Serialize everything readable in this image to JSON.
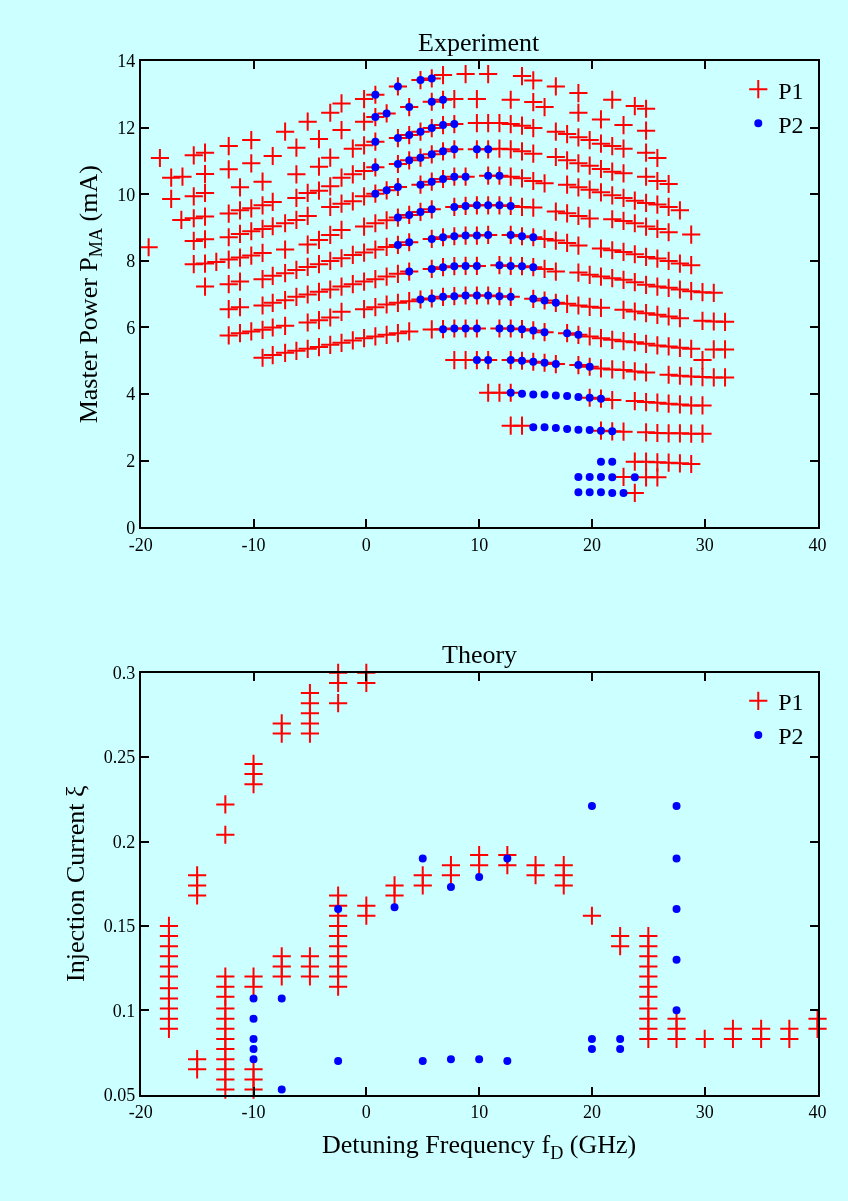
{
  "chart_data": [
    {
      "type": "scatter",
      "title": "Experiment",
      "ylabel": "Master Power P$_{MA}$ (mA)",
      "xlim": [
        -20,
        40
      ],
      "ylim": [
        0,
        14
      ],
      "xticks": [
        -20,
        -10,
        0,
        10,
        20,
        30,
        40
      ],
      "yticks": [
        0,
        2,
        4,
        6,
        8,
        10,
        12,
        14
      ],
      "grid": false,
      "legend": "top right",
      "series": [
        {
          "name": "P1",
          "color": "#ff0000",
          "marker": "cross",
          "x": [
            -19.3,
            -18.3,
            -17.3,
            -16.3,
            -17.3,
            -15.3,
            -14.3,
            -14.3,
            -15.3,
            -14.3,
            -16.4,
            -15.3,
            -14.3,
            -15.3,
            -14.3,
            -14.3,
            -15.3,
            -14.3,
            -13.3,
            -12.2,
            -11.2,
            -10.2,
            -9.2,
            -12.2,
            -10.2,
            -12.2,
            -10.2,
            -11.2,
            -9.2,
            -12.2,
            -11.2,
            -10.2,
            -9.2,
            -8.3,
            -12.2,
            -11.2,
            -10.2,
            -9.2,
            -8.3,
            -7.2,
            -6.2,
            -5.2,
            -12.2,
            -11.2,
            -9.2,
            -8.3,
            -7.2,
            -6.2,
            -5.2,
            -4.2,
            -3.2,
            -2.2,
            -1.2,
            -0.2,
            0.8,
            1.8,
            2.8,
            3.8,
            5.8,
            -12.2,
            -11.2,
            -9.2,
            -8.3,
            -7.2,
            -6.2,
            -5.2,
            -4.2,
            -3.2,
            -2.2,
            -1.2,
            -0.2,
            0.8,
            1.8,
            2.8,
            3.8,
            5.8,
            -12.2,
            -11.2,
            -10.2,
            -9.2,
            -8.3,
            -7.2,
            -5.2,
            -4.2,
            -3.2,
            -2.2,
            -0.2,
            0.8,
            1.8,
            2.8,
            3.8,
            4.8,
            5.8,
            -9.2,
            -8.3,
            -7.2,
            -6.2,
            -5.2,
            -4.2,
            -3.2,
            -2.2,
            -1.2,
            -0.2,
            0.8,
            1.8,
            2.8,
            3.8,
            5.8,
            -7.2,
            -5.2,
            -3.2,
            -2.2,
            -0.2,
            0.8,
            2.8,
            4.8,
            5.8,
            -8.3,
            -6.2,
            -4.2,
            -2.2,
            -0.2,
            0.8,
            1.8,
            3.8,
            5.8,
            -6.2,
            -4.2,
            -3.2,
            -1.2,
            -0.2,
            0.8,
            2.8,
            3.8,
            4.8,
            5.8,
            -6.2,
            -5.2,
            -4.2,
            -3.2,
            -2.2,
            -1.2,
            -0.2,
            0.8,
            2.8,
            3.8,
            4.8,
            5.8,
            -3.2,
            -2.2,
            -1.2,
            -0.2,
            0.8,
            1.8,
            2.8,
            4.8,
            5.8,
            -7.2,
            -5.2,
            -4.2,
            -3.2,
            -2.2,
            -0.2,
            0.8,
            1.8,
            2.8,
            3.8,
            4.8,
            5.8,
            6.8,
            8.8,
            10.8,
            13.8,
            14.8,
            16.8,
            18.8,
            21.8,
            23.8,
            24.8,
            6.8,
            7.8,
            9.8,
            12.8,
            14.8,
            15.8,
            18.8,
            20.8,
            22.8,
            24.8,
            6.8,
            7.8,
            9.8,
            10.8,
            11.8,
            12.8,
            13.8,
            14.8,
            16.8,
            17.8,
            18.8,
            19.8,
            20.8,
            21.8,
            22.8,
            24.8,
            25.8,
            6.8,
            7.8,
            9.8,
            10.8,
            11.8,
            12.8,
            13.8,
            14.8,
            16.8,
            17.8,
            18.8,
            19.8,
            20.8,
            21.8,
            22.8,
            24.8,
            25.8,
            26.8,
            6.8,
            7.8,
            8.8,
            10.8,
            11.8,
            12.8,
            13.8,
            14.8,
            15.8,
            17.8,
            18.8,
            19.8,
            20.8,
            21.8,
            22.8,
            23.8,
            24.8,
            25.8,
            26.8,
            27.8,
            7.8,
            8.8,
            9.8,
            10.8,
            11.8,
            12.8,
            13.8,
            14.8,
            16.8,
            17.8,
            18.8,
            19.8,
            21.8,
            22.8,
            23.8,
            24.8,
            25.8,
            26.8,
            28.8,
            6.8,
            7.8,
            8.8,
            9.8,
            10.8,
            12.8,
            13.8,
            14.8,
            15.8,
            16.8,
            17.8,
            18.8,
            20.8,
            21.8,
            22.8,
            23.8,
            24.8,
            25.8,
            26.8,
            27.8,
            28.8,
            6.8,
            7.8,
            8.8,
            9.8,
            11.8,
            12.8,
            13.8,
            14.8,
            15.8,
            16.8,
            18.8,
            19.8,
            20.8,
            21.8,
            22.8,
            23.8,
            24.8,
            25.8,
            26.8,
            27.8,
            28.8,
            29.8,
            30.8,
            6.8,
            7.8,
            8.8,
            9.8,
            10.8,
            11.8,
            12.8,
            14.8,
            15.8,
            16.8,
            17.8,
            18.8,
            19.8,
            20.8,
            22.8,
            23.8,
            24.8,
            25.8,
            26.8,
            27.8,
            29.8,
            30.8,
            31.8,
            6.8,
            7.8,
            8.8,
            9.8,
            11.8,
            12.8,
            13.8,
            14.8,
            15.8,
            17.8,
            18.8,
            19.8,
            20.8,
            21.8,
            22.8,
            23.8,
            24.8,
            25.8,
            26.8,
            27.8,
            28.8,
            30.8,
            31.8,
            29.8,
            7.8,
            8.8,
            9.8,
            10.8,
            12.8,
            13.8,
            14.8,
            15.8,
            16.8,
            18.8,
            19.8,
            20.8,
            21.8,
            22.8,
            23.8,
            24.8,
            26.8,
            27.8,
            28.8,
            29.8,
            30.8,
            31.8,
            10.8,
            11.8,
            12.8,
            19.8,
            20.8,
            21.8,
            23.8,
            24.8,
            25.8,
            26.8,
            27.8,
            28.8,
            29.8,
            12.8,
            13.8,
            20.8,
            21.8,
            22.8,
            24.8,
            25.8,
            26.8,
            27.8,
            28.8,
            29.8,
            23.8,
            24.8,
            25.8,
            26.8,
            27.8,
            28.8,
            22.8,
            24.8,
            25.8,
            23.8
          ],
          "values": [
            8.41,
            11.09,
            10.5,
            10.53,
            9.86,
            11.17,
            11.25,
            10.61,
            9.94,
            10.04,
            9.23,
            9.28,
            9.33,
            8.6,
            8.65,
            7.23,
            7.9,
            7.92,
            7.97,
            8.04,
            8.1,
            8.16,
            8.24,
            11.45,
            11.63,
            10.75,
            10.93,
            10.21,
            10.38,
            9.42,
            9.52,
            9.58,
            9.67,
            9.77,
            8.71,
            8.81,
            8.89,
            8.96,
            9.04,
            9.13,
            9.23,
            9.35,
            7.3,
            7.38,
            7.45,
            7.55,
            7.63,
            7.73,
            7.82,
            7.9,
            8.0,
            8.08,
            8.18,
            8.25,
            8.34,
            8.42,
            8.48,
            8.56,
            8.66,
            6.55,
            6.61,
            6.66,
            6.74,
            6.82,
            6.92,
            6.99,
            7.07,
            7.14,
            7.23,
            7.3,
            7.38,
            7.45,
            7.53,
            7.61,
            7.68,
            7.76,
            5.76,
            5.83,
            5.88,
            5.93,
            6.0,
            6.05,
            6.15,
            6.22,
            6.3,
            6.47,
            6.55,
            6.61,
            6.69,
            6.74,
            6.79,
            6.84,
            6.87,
            5.09,
            5.17,
            5.24,
            5.3,
            5.36,
            5.41,
            5.48,
            5.54,
            5.61,
            5.68,
            5.73,
            5.78,
            5.83,
            5.88,
            5.94,
            11.88,
            12.18,
            12.45,
            12.73,
            12.86,
            12.99,
            13.24,
            13.43,
            13.48,
            11.15,
            11.4,
            11.66,
            11.93,
            12.18,
            12.32,
            12.43,
            12.62,
            12.78,
            10.6,
            10.83,
            11.1,
            11.37,
            11.47,
            11.58,
            11.69,
            11.78,
            11.88,
            11.99,
            9.89,
            10.04,
            10.11,
            10.24,
            10.5,
            10.6,
            10.7,
            10.81,
            10.91,
            11.02,
            11.1,
            11.2,
            9.62,
            9.72,
            9.79,
            9.94,
            10.02,
            10.12,
            10.22,
            10.29,
            10.38,
            8.34,
            8.49,
            8.63,
            8.78,
            8.93,
            9.03,
            9.13,
            9.22,
            9.3,
            9.38,
            9.47,
            9.55,
            13.58,
            13.61,
            13.61,
            13.55,
            13.42,
            13.24,
            13.04,
            12.84,
            12.65,
            12.57,
            12.84,
            12.86,
            12.86,
            12.84,
            12.77,
            12.62,
            12.45,
            12.25,
            12.08,
            11.91,
            12.08,
            12.11,
            12.14,
            12.14,
            12.14,
            12.11,
            12.06,
            11.99,
            11.88,
            11.81,
            11.71,
            11.63,
            11.52,
            11.45,
            11.37,
            11.25,
            11.09,
            11.29,
            11.35,
            11.35,
            11.35,
            11.37,
            11.35,
            11.29,
            11.22,
            11.12,
            11.02,
            10.93,
            10.86,
            10.76,
            10.68,
            10.63,
            10.53,
            10.4,
            10.31,
            10.46,
            10.53,
            10.53,
            10.56,
            10.56,
            10.53,
            10.48,
            10.4,
            10.33,
            10.29,
            10.21,
            10.14,
            10.06,
            9.97,
            9.89,
            9.81,
            9.74,
            9.69,
            9.62,
            9.52,
            9.62,
            9.65,
            9.67,
            9.67,
            9.67,
            9.65,
            9.62,
            9.6,
            9.48,
            9.43,
            9.35,
            9.27,
            9.25,
            9.2,
            9.13,
            9.03,
            8.96,
            8.86,
            8.79,
            8.71,
            8.74,
            8.76,
            8.76,
            8.78,
            8.78,
            8.74,
            8.71,
            8.66,
            8.61,
            8.54,
            8.46,
            8.37,
            8.32,
            8.27,
            8.2,
            8.12,
            8.07,
            8.0,
            7.92,
            7.87,
            7.81,
            7.84,
            7.85,
            7.85,
            7.87,
            7.85,
            7.84,
            7.81,
            7.76,
            7.68,
            7.65,
            7.58,
            7.53,
            7.48,
            7.43,
            7.36,
            7.28,
            7.23,
            7.19,
            7.14,
            7.09,
            7.06,
            7.04,
            6.92,
            6.94,
            6.96,
            6.96,
            6.96,
            6.94,
            6.92,
            6.86,
            6.81,
            6.74,
            6.71,
            6.66,
            6.62,
            6.59,
            6.53,
            6.48,
            6.43,
            6.38,
            6.33,
            6.28,
            6.2,
            6.18,
            6.17,
            5.95,
            5.97,
            5.97,
            5.97,
            5.97,
            5.97,
            5.95,
            5.91,
            5.86,
            5.83,
            5.78,
            5.73,
            5.68,
            5.63,
            5.59,
            5.56,
            5.51,
            5.46,
            5.43,
            5.39,
            5.36,
            5.34,
            5.34,
            5.02,
            5.02,
            5.02,
            5.02,
            5.02,
            5.02,
            5.0,
            4.97,
            4.94,
            4.9,
            4.87,
            4.82,
            4.77,
            4.74,
            4.72,
            4.68,
            4.65,
            4.58,
            4.55,
            4.53,
            4.51,
            4.5,
            4.5,
            4.04,
            4.04,
            4.04,
            3.89,
            3.86,
            3.82,
            3.79,
            3.76,
            3.74,
            3.71,
            3.69,
            3.66,
            3.66,
            3.05,
            3.05,
            2.9,
            2.88,
            2.87,
            2.85,
            2.83,
            2.82,
            2.82,
            2.81,
            2.81,
            1.97,
            1.97,
            1.95,
            1.94,
            1.92,
            1.9,
            1.51,
            1.5,
            1.5,
            1.03
          ]
        },
        {
          "name": "P2",
          "color": "#0000ff",
          "marker": "circle",
          "x": [
            0.8,
            2.8,
            4.8,
            5.8,
            0.8,
            1.8,
            3.8,
            5.8,
            0.8,
            2.8,
            3.8,
            4.8,
            5.8,
            0.8,
            2.8,
            3.8,
            4.8,
            5.8,
            0.8,
            1.8,
            2.8,
            4.8,
            5.8,
            2.8,
            3.8,
            4.8,
            5.8,
            2.8,
            3.8,
            5.8,
            3.8,
            5.8,
            4.8,
            5.8,
            6.8,
            6.8,
            7.8,
            6.8,
            7.8,
            9.8,
            10.8,
            6.8,
            7.8,
            8.8,
            10.8,
            11.8,
            7.8,
            8.8,
            9.8,
            10.8,
            11.8,
            12.8,
            6.8,
            7.8,
            8.8,
            9.8,
            10.8,
            12.8,
            13.8,
            14.8,
            6.8,
            7.8,
            8.8,
            9.8,
            11.8,
            12.8,
            13.8,
            14.8,
            6.8,
            7.8,
            8.8,
            9.8,
            10.8,
            11.8,
            12.8,
            14.8,
            15.8,
            16.8,
            6.8,
            7.8,
            8.8,
            9.8,
            11.8,
            12.8,
            13.8,
            14.8,
            15.8,
            17.8,
            18.8,
            9.8,
            10.8,
            12.8,
            13.8,
            14.8,
            15.8,
            16.8,
            18.8,
            19.8,
            12.8,
            13.8,
            14.8,
            15.8,
            16.8,
            17.8,
            18.8,
            19.8,
            20.8,
            14.8,
            15.8,
            16.8,
            17.8,
            18.8,
            19.8,
            20.8,
            21.8,
            20.8,
            21.8,
            18.8,
            19.8,
            20.8,
            21.8,
            23.8,
            18.8,
            19.8,
            20.8,
            21.8,
            22.8
          ],
          "values": [
            12.99,
            13.24,
            13.43,
            13.48,
            12.32,
            12.43,
            12.62,
            12.78,
            11.58,
            11.69,
            11.78,
            11.88,
            11.99,
            10.81,
            10.91,
            11.02,
            11.1,
            11.2,
            10.02,
            10.12,
            10.22,
            10.29,
            10.38,
            9.3,
            9.38,
            9.47,
            9.55,
            8.48,
            8.56,
            8.66,
            7.68,
            7.76,
            6.84,
            6.87,
            12.84,
            12.08,
            12.11,
            11.29,
            11.35,
            11.35,
            11.35,
            10.46,
            10.53,
            10.53,
            10.56,
            10.56,
            9.62,
            9.65,
            9.67,
            9.67,
            9.67,
            9.65,
            8.71,
            8.74,
            8.76,
            8.76,
            8.78,
            8.78,
            8.74,
            8.71,
            7.81,
            7.84,
            7.85,
            7.85,
            7.87,
            7.85,
            7.84,
            7.81,
            6.92,
            6.94,
            6.96,
            6.96,
            6.96,
            6.94,
            6.92,
            6.86,
            6.81,
            6.74,
            5.95,
            5.97,
            5.97,
            5.97,
            5.97,
            5.97,
            5.95,
            5.91,
            5.86,
            5.83,
            5.78,
            5.02,
            5.02,
            5.02,
            5.0,
            4.97,
            4.94,
            4.9,
            4.87,
            4.82,
            4.04,
            4.01,
            3.99,
            3.99,
            3.96,
            3.94,
            3.91,
            3.89,
            3.86,
            3.0,
            3.0,
            2.98,
            2.95,
            2.93,
            2.92,
            2.9,
            2.88,
            1.97,
            1.97,
            1.51,
            1.51,
            1.51,
            1.5,
            1.5,
            1.05,
            1.05,
            1.05,
            1.03,
            1.03
          ]
        }
      ]
    },
    {
      "type": "scatter",
      "title": "Theory",
      "xlabel": "Detuning Frequency f$_{D}$ (GHz)",
      "ylabel": "Injection Current ξ",
      "xlim": [
        -20,
        40
      ],
      "ylim": [
        0.05,
        0.3
      ],
      "xticks": [
        -20,
        -10,
        0,
        10,
        20,
        30,
        40
      ],
      "yticks": [
        0.05,
        0.1,
        0.15,
        0.2,
        0.25,
        0.3
      ],
      "grid": false,
      "legend": "top right",
      "series": [
        {
          "name": "P1",
          "color": "#ff0000",
          "marker": "cross",
          "x": [
            -17.5,
            -17.5,
            -17.5,
            -17.5,
            -17.5,
            -17.5,
            -17.5,
            -17.5,
            -17.5,
            -17.5,
            -17.5,
            -15,
            -15,
            -15,
            -15,
            -15,
            -12.5,
            -12.5,
            -12.5,
            -12.5,
            -12.5,
            -12.5,
            -12.5,
            -12.5,
            -12.5,
            -12.5,
            -12.5,
            -12.5,
            -12.5,
            -12.5,
            -10,
            -10,
            -10,
            -10,
            -10,
            -10,
            -10,
            -10,
            -7.5,
            -7.5,
            -7.5,
            -7.5,
            -7.5,
            -5,
            -5,
            -5,
            -5,
            -5,
            -5,
            -5,
            -5,
            -2.5,
            -2.5,
            -2.5,
            -2.5,
            -2.5,
            -2.5,
            -2.5,
            -2.5,
            -2.5,
            -2.5,
            -2.5,
            -2.5,
            -2.5,
            0,
            0,
            0,
            0,
            2.5,
            2.5,
            5,
            5,
            7.5,
            7.5,
            10,
            10,
            12.5,
            12.5,
            15,
            15,
            17.5,
            17.5,
            17.5,
            20,
            22.5,
            22.5,
            25,
            25,
            25,
            25,
            25,
            25,
            25,
            25,
            25,
            25,
            25,
            27.5,
            27.5,
            27.5,
            30,
            32.5,
            32.5,
            35,
            35,
            37.5,
            37.5,
            40,
            40
          ],
          "values": [
            0.15,
            0.144,
            0.138,
            0.132,
            0.126,
            0.12,
            0.113,
            0.107,
            0.101,
            0.095,
            0.089,
            0.18,
            0.174,
            0.168,
            0.071,
            0.065,
            0.222,
            0.204,
            0.12,
            0.114,
            0.108,
            0.101,
            0.095,
            0.089,
            0.083,
            0.077,
            0.071,
            0.065,
            0.059,
            0.053,
            0.246,
            0.24,
            0.234,
            0.12,
            0.114,
            0.065,
            0.059,
            0.053,
            0.27,
            0.264,
            0.132,
            0.126,
            0.12,
            0.288,
            0.282,
            0.276,
            0.27,
            0.264,
            0.132,
            0.126,
            0.12,
            0.3,
            0.294,
            0.282,
            0.168,
            0.162,
            0.156,
            0.15,
            0.144,
            0.138,
            0.132,
            0.126,
            0.12,
            0.114,
            0.3,
            0.294,
            0.162,
            0.156,
            0.174,
            0.168,
            0.18,
            0.174,
            0.186,
            0.18,
            0.192,
            0.186,
            0.192,
            0.186,
            0.186,
            0.18,
            0.186,
            0.18,
            0.174,
            0.156,
            0.144,
            0.138,
            0.144,
            0.138,
            0.132,
            0.126,
            0.12,
            0.114,
            0.108,
            0.101,
            0.095,
            0.089,
            0.083,
            0.095,
            0.089,
            0.083,
            0.083,
            0.089,
            0.083,
            0.089,
            0.083,
            0.089,
            0.083,
            0.095,
            0.089
          ]
        },
        {
          "name": "P2",
          "color": "#0000ff",
          "marker": "circle",
          "x": [
            -10,
            -10,
            -10,
            -10,
            -10,
            -7.5,
            -7.5,
            -2.5,
            -2.5,
            2.5,
            5,
            5,
            7.5,
            7.5,
            10,
            10,
            12.5,
            12.5,
            20,
            20,
            20,
            22.5,
            22.5,
            27.5,
            27.5,
            27.5,
            27.5,
            27.5
          ],
          "values": [
            0.107,
            0.095,
            0.083,
            0.077,
            0.071,
            0.107,
            0.053,
            0.16,
            0.07,
            0.161,
            0.19,
            0.07,
            0.173,
            0.071,
            0.179,
            0.071,
            0.19,
            0.07,
            0.221,
            0.083,
            0.077,
            0.083,
            0.077,
            0.221,
            0.19,
            0.16,
            0.13,
            0.1
          ]
        }
      ]
    }
  ]
}
